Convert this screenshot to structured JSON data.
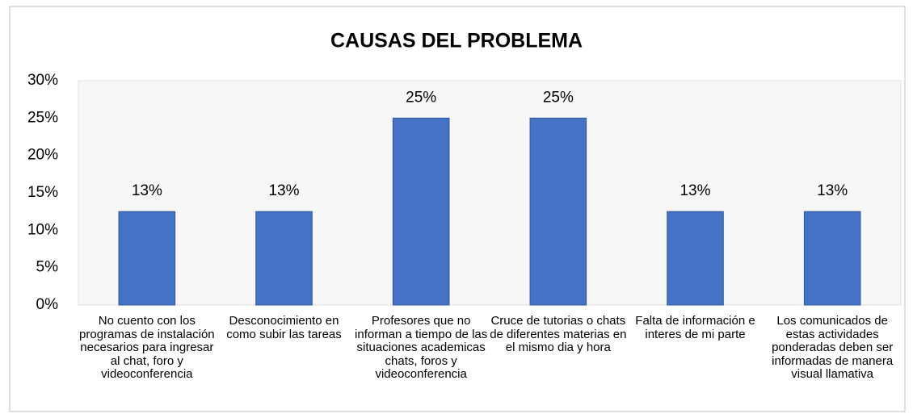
{
  "chart_data": {
    "type": "bar",
    "title": "CAUSAS DEL PROBLEMA",
    "categories": [
      "No cuento con los programas de instalación necesarios para ingresar al chat, foro y videoconferencia",
      "Desconocimiento en como subir las tareas",
      "Profesores que no informan a tiempo de las situaciones academicas chats, foros y videoconferencia",
      "Cruce de tutorias o chats de diferentes materias en el mismo dia y hora",
      "Falta de información e interes de mi parte",
      "Los comunicados de estas actividades ponderadas deben ser informadas de manera visual llamativa"
    ],
    "values": [
      12.5,
      12.5,
      25,
      25,
      12.5,
      12.5
    ],
    "value_labels": [
      "13%",
      "13%",
      "25%",
      "25%",
      "13%",
      "13%"
    ],
    "color": "#4472c4",
    "ylim": [
      0,
      30
    ],
    "yticks": [
      {
        "value": 0,
        "label": "0%"
      },
      {
        "value": 5,
        "label": "5%"
      },
      {
        "value": 10,
        "label": "10%"
      },
      {
        "value": 15,
        "label": "15%"
      },
      {
        "value": 20,
        "label": "20%"
      },
      {
        "value": 25,
        "label": "25%"
      },
      {
        "value": 30,
        "label": "30%"
      }
    ],
    "grid": false
  }
}
